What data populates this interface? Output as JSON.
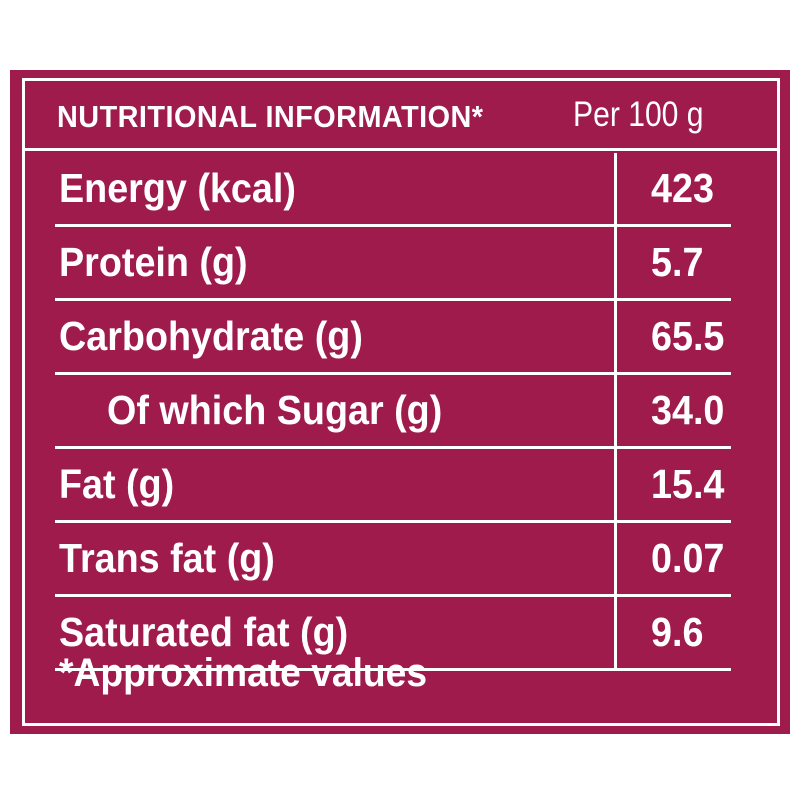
{
  "panel": {
    "background_color": "#9e1b4c",
    "text_color": "#ffffff"
  },
  "header": {
    "title": "NUTRITIONAL INFORMATION*",
    "per": "Per 100 g"
  },
  "rows": [
    {
      "label": "Energy (kcal)",
      "value": "423"
    },
    {
      "label": "Protein (g)",
      "value": "5.7"
    },
    {
      "label": "Carbohydrate (g)",
      "value": "65.5"
    },
    {
      "label": "Of which Sugar (g)",
      "value": "34.0"
    },
    {
      "label": "Fat (g)",
      "value": "15.4"
    },
    {
      "label": "Trans fat (g)",
      "value": "0.07"
    },
    {
      "label": "Saturated fat (g)",
      "value": "9.6"
    }
  ],
  "footer": {
    "note": "*Approximate values"
  }
}
